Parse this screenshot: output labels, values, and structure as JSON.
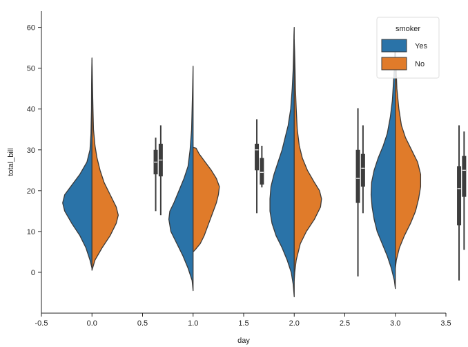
{
  "chart_data": {
    "type": "violin",
    "title": "",
    "xlabel": "day",
    "ylabel": "total_bill",
    "xlim": [
      -0.5,
      3.5
    ],
    "ylim": [
      -10,
      64
    ],
    "xticks": [
      -0.5,
      0.0,
      0.5,
      1.0,
      1.5,
      2.0,
      2.5,
      3.0,
      3.5
    ],
    "xtick_labels": [
      "-0.5",
      "0.0",
      "0.5",
      "1.0",
      "1.5",
      "2.0",
      "2.5",
      "3.0",
      "3.5"
    ],
    "yticks": [
      0,
      10,
      20,
      30,
      40,
      50,
      60
    ],
    "ytick_labels": [
      "0",
      "10",
      "20",
      "30",
      "40",
      "50",
      "60"
    ],
    "legend": {
      "title": "smoker",
      "placement": "top-right",
      "entries": [
        {
          "label": "Yes",
          "color": "#2a73a8"
        },
        {
          "label": "No",
          "color": "#e07b2a"
        }
      ]
    },
    "violins": [
      {
        "position": 0,
        "series": "Yes",
        "side": "left",
        "color": "#2a73a8",
        "profile": [
          [
            1,
            0
          ],
          [
            3,
            0.02
          ],
          [
            6,
            0.06
          ],
          [
            9,
            0.12
          ],
          [
            12,
            0.2
          ],
          [
            15,
            0.27
          ],
          [
            17,
            0.29
          ],
          [
            19,
            0.27
          ],
          [
            21,
            0.21
          ],
          [
            24,
            0.12
          ],
          [
            27,
            0.05
          ],
          [
            30,
            0.02
          ],
          [
            34,
            0.01
          ],
          [
            40,
            0.005
          ],
          [
            46,
            0.004
          ],
          [
            50,
            0.002
          ],
          [
            52.5,
            0
          ]
        ]
      },
      {
        "position": 0,
        "series": "No",
        "side": "right",
        "color": "#e07b2a",
        "profile": [
          [
            0.5,
            0
          ],
          [
            3,
            0.03
          ],
          [
            6,
            0.1
          ],
          [
            9,
            0.18
          ],
          [
            12,
            0.24
          ],
          [
            14,
            0.26
          ],
          [
            16,
            0.24
          ],
          [
            19,
            0.18
          ],
          [
            22,
            0.12
          ],
          [
            25,
            0.08
          ],
          [
            28,
            0.05
          ],
          [
            31,
            0.03
          ],
          [
            35,
            0.015
          ],
          [
            40,
            0.01
          ],
          [
            46,
            0.005
          ],
          [
            50,
            0.002
          ],
          [
            52,
            0
          ]
        ]
      },
      {
        "position": 1,
        "series": "Yes",
        "side": "left",
        "color": "#2a73a8",
        "profile": [
          [
            -4.5,
            0
          ],
          [
            -2,
            0.01
          ],
          [
            1,
            0.05
          ],
          [
            4,
            0.1
          ],
          [
            7,
            0.16
          ],
          [
            10,
            0.22
          ],
          [
            13,
            0.24
          ],
          [
            15,
            0.23
          ],
          [
            17,
            0.19
          ],
          [
            20,
            0.14
          ],
          [
            23,
            0.09
          ],
          [
            26,
            0.05
          ],
          [
            30,
            0.03
          ],
          [
            35,
            0.015
          ],
          [
            40,
            0.01
          ],
          [
            45,
            0.005
          ],
          [
            50.5,
            0
          ]
        ]
      },
      {
        "position": 1,
        "series": "No",
        "side": "right",
        "color": "#e07b2a",
        "profile": [
          [
            5,
            0
          ],
          [
            5.5,
            0.02
          ],
          [
            7,
            0.07
          ],
          [
            9,
            0.11
          ],
          [
            11,
            0.14
          ],
          [
            13,
            0.17
          ],
          [
            15,
            0.2
          ],
          [
            17,
            0.23
          ],
          [
            19,
            0.25
          ],
          [
            21,
            0.26
          ],
          [
            23,
            0.23
          ],
          [
            25,
            0.18
          ],
          [
            27,
            0.12
          ],
          [
            29,
            0.06
          ],
          [
            30.4,
            0.03
          ],
          [
            30.6,
            0
          ]
        ]
      },
      {
        "position": 2,
        "series": "Yes",
        "side": "left",
        "color": "#2a73a8",
        "profile": [
          [
            -6,
            0
          ],
          [
            -3,
            0.01
          ],
          [
            0,
            0.03
          ],
          [
            3,
            0.07
          ],
          [
            6,
            0.12
          ],
          [
            9,
            0.18
          ],
          [
            12,
            0.22
          ],
          [
            15,
            0.24
          ],
          [
            18,
            0.24
          ],
          [
            21,
            0.23
          ],
          [
            24,
            0.2
          ],
          [
            27,
            0.16
          ],
          [
            30,
            0.12
          ],
          [
            33,
            0.09
          ],
          [
            36,
            0.06
          ],
          [
            40,
            0.035
          ],
          [
            45,
            0.02
          ],
          [
            50,
            0.01
          ],
          [
            55,
            0.005
          ],
          [
            58,
            0.003
          ],
          [
            60,
            0
          ]
        ]
      },
      {
        "position": 2,
        "series": "No",
        "side": "right",
        "color": "#e07b2a",
        "profile": [
          [
            -2,
            0
          ],
          [
            0,
            0.005
          ],
          [
            3,
            0.02
          ],
          [
            7,
            0.06
          ],
          [
            10,
            0.12
          ],
          [
            13,
            0.2
          ],
          [
            16,
            0.26
          ],
          [
            18,
            0.27
          ],
          [
            20,
            0.25
          ],
          [
            22,
            0.2
          ],
          [
            25,
            0.13
          ],
          [
            28,
            0.08
          ],
          [
            31,
            0.05
          ],
          [
            35,
            0.03
          ],
          [
            40,
            0.02
          ],
          [
            45,
            0.012
          ],
          [
            50,
            0.008
          ],
          [
            54,
            0.004
          ],
          [
            57,
            0
          ]
        ]
      },
      {
        "position": 3,
        "series": "Yes",
        "side": "left",
        "color": "#2a73a8",
        "profile": [
          [
            -4,
            0
          ],
          [
            -2,
            0.01
          ],
          [
            1,
            0.04
          ],
          [
            4,
            0.08
          ],
          [
            7,
            0.13
          ],
          [
            10,
            0.18
          ],
          [
            13,
            0.21
          ],
          [
            16,
            0.23
          ],
          [
            19,
            0.24
          ],
          [
            22,
            0.235
          ],
          [
            25,
            0.21
          ],
          [
            28,
            0.17
          ],
          [
            31,
            0.12
          ],
          [
            34,
            0.08
          ],
          [
            38,
            0.05
          ],
          [
            42,
            0.03
          ],
          [
            46,
            0.02
          ],
          [
            50,
            0.01
          ],
          [
            54,
            0.005
          ],
          [
            57,
            0
          ]
        ]
      },
      {
        "position": 3,
        "series": "No",
        "side": "right",
        "color": "#e07b2a",
        "profile": [
          [
            1,
            0
          ],
          [
            3,
            0.01
          ],
          [
            6,
            0.04
          ],
          [
            9,
            0.09
          ],
          [
            12,
            0.15
          ],
          [
            15,
            0.2
          ],
          [
            18,
            0.23
          ],
          [
            21,
            0.25
          ],
          [
            24,
            0.25
          ],
          [
            27,
            0.22
          ],
          [
            30,
            0.16
          ],
          [
            33,
            0.1
          ],
          [
            36,
            0.06
          ],
          [
            40,
            0.035
          ],
          [
            45,
            0.015
          ],
          [
            50,
            0.008
          ],
          [
            54,
            0.003
          ],
          [
            57,
            0
          ]
        ]
      }
    ],
    "boxes": [
      {
        "position": 0.63,
        "q1": 24,
        "median": 27.0,
        "q3": 30,
        "whisker_low": 15,
        "whisker_high": 33
      },
      {
        "position": 0.68,
        "q1": 23.5,
        "median": 27.5,
        "q3": 31.5,
        "whisker_low": 14,
        "whisker_high": 36
      },
      {
        "position": 1.63,
        "q1": 25.0,
        "median": 30.0,
        "q3": 31.5,
        "whisker_low": 14.5,
        "whisker_high": 37.5
      },
      {
        "position": 1.68,
        "q1": 21.5,
        "median": 24.5,
        "q3": 28.0,
        "whisker_low": 20.8,
        "whisker_high": 31.0
      },
      {
        "position": 2.63,
        "q1": 17.0,
        "median": 23.0,
        "q3": 30.0,
        "whisker_low": -1,
        "whisker_high": 40.2
      },
      {
        "position": 2.68,
        "q1": 21.0,
        "median": 25.5,
        "q3": 29.0,
        "whisker_low": 14.5,
        "whisker_high": 36.0
      },
      {
        "position": 3.63,
        "q1": 11.5,
        "median": 20.5,
        "q3": 26.0,
        "whisker_low": -2,
        "whisker_high": 36.0
      },
      {
        "position": 3.68,
        "q1": 18.5,
        "median": 25.0,
        "q3": 28.5,
        "whisker_low": 5.5,
        "whisker_high": 34.5
      }
    ]
  }
}
